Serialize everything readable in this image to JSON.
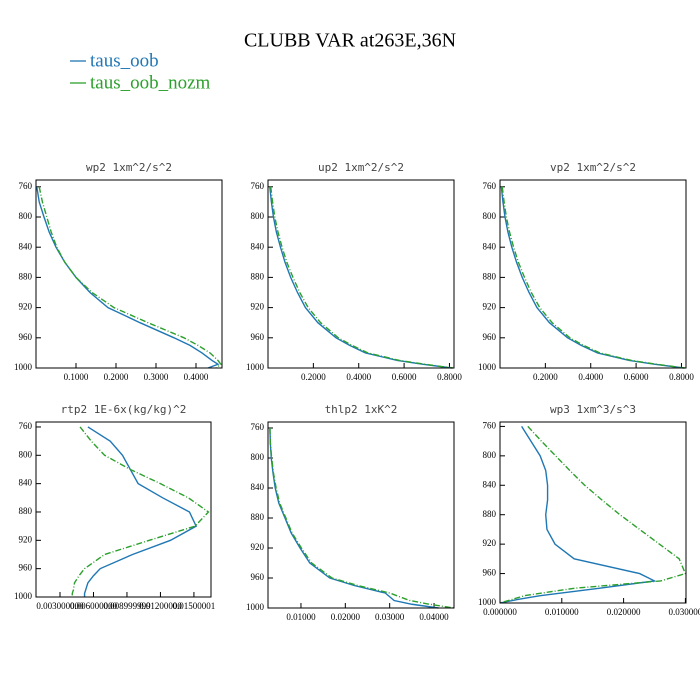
{
  "title": "CLUBB VAR at263E,36N",
  "chart_data": [
    {
      "type": "line",
      "title": "wp2  1xm^2/s^2",
      "y": [
        760,
        780,
        800,
        820,
        840,
        860,
        880,
        900,
        920,
        940,
        960,
        970,
        980,
        990,
        995,
        1000
      ],
      "series": [
        {
          "name": "taus_oob",
          "color": "#1f77b4",
          "values": [
            0.002,
            0.008,
            0.02,
            0.033,
            0.05,
            0.072,
            0.1,
            0.135,
            0.18,
            0.26,
            0.345,
            0.385,
            0.415,
            0.44,
            0.455,
            0.43
          ]
        },
        {
          "name": "taus_oob_nozm",
          "color": "#2ca02c",
          "values": [
            0.008,
            0.016,
            0.027,
            0.038,
            0.052,
            0.072,
            0.1,
            0.14,
            0.195,
            0.28,
            0.37,
            0.405,
            0.435,
            0.455,
            0.462,
            0.45
          ]
        }
      ],
      "xlim": [
        0,
        0.465
      ],
      "ylim": [
        1000,
        751
      ],
      "xticks": [
        {
          "value": 0.1,
          "label": "0.1000"
        },
        {
          "value": 0.2,
          "label": "0.2000"
        },
        {
          "value": 0.3,
          "label": "0.3000"
        },
        {
          "value": 0.4,
          "label": "0.4000"
        }
      ],
      "yticks": [
        760,
        800,
        840,
        880,
        920,
        960,
        1000
      ]
    },
    {
      "type": "line",
      "title": "up2  1xm^2/s^2",
      "y": [
        760,
        780,
        800,
        820,
        840,
        860,
        880,
        900,
        920,
        940,
        960,
        970,
        980,
        990,
        995,
        1000
      ],
      "series": [
        {
          "color": "#1f77b4",
          "values": [
            0.008,
            0.015,
            0.024,
            0.037,
            0.055,
            0.075,
            0.1,
            0.13,
            0.165,
            0.22,
            0.3,
            0.36,
            0.43,
            0.57,
            0.68,
            0.81
          ]
        },
        {
          "color": "#2ca02c",
          "values": [
            0.012,
            0.02,
            0.03,
            0.044,
            0.062,
            0.083,
            0.11,
            0.14,
            0.177,
            0.232,
            0.31,
            0.37,
            0.44,
            0.58,
            0.69,
            0.815
          ]
        }
      ],
      "xlim": [
        0,
        0.82
      ],
      "ylim": [
        1000,
        751
      ],
      "xticks": [
        {
          "value": 0.2,
          "label": "0.2000"
        },
        {
          "value": 0.4,
          "label": "0.4000"
        },
        {
          "value": 0.6,
          "label": "0.6000"
        },
        {
          "value": 0.8,
          "label": "0.8000"
        }
      ],
      "yticks": [
        760,
        800,
        840,
        880,
        920,
        960,
        1000
      ]
    },
    {
      "type": "line",
      "title": "vp2  1xm^2/s^2",
      "y": [
        760,
        780,
        800,
        820,
        840,
        860,
        880,
        900,
        920,
        940,
        960,
        970,
        980,
        990,
        995,
        1000
      ],
      "series": [
        {
          "color": "#1f77b4",
          "values": [
            0.006,
            0.013,
            0.022,
            0.035,
            0.052,
            0.073,
            0.098,
            0.128,
            0.163,
            0.218,
            0.298,
            0.358,
            0.43,
            0.57,
            0.68,
            0.81
          ]
        },
        {
          "color": "#2ca02c",
          "values": [
            0.01,
            0.018,
            0.028,
            0.042,
            0.06,
            0.081,
            0.108,
            0.138,
            0.175,
            0.23,
            0.308,
            0.368,
            0.44,
            0.58,
            0.69,
            0.815
          ]
        }
      ],
      "xlim": [
        0,
        0.82
      ],
      "ylim": [
        1000,
        751
      ],
      "xticks": [
        {
          "value": 0.2,
          "label": "0.2000"
        },
        {
          "value": 0.4,
          "label": "0.4000"
        },
        {
          "value": 0.6,
          "label": "0.6000"
        },
        {
          "value": 0.8,
          "label": "0.8000"
        }
      ],
      "yticks": [
        760,
        800,
        840,
        880,
        920,
        960,
        1000
      ]
    },
    {
      "type": "line",
      "title": "rtp2  1E-6x(kg/kg)^2",
      "y": [
        760,
        780,
        800,
        820,
        840,
        860,
        880,
        900,
        920,
        940,
        960,
        970,
        980,
        990,
        995,
        1000
      ],
      "series": [
        {
          "color": "#1f77b4",
          "values": [
            0.0055,
            0.0075,
            0.0086,
            0.0093,
            0.01,
            0.0122,
            0.0146,
            0.0152,
            0.0129,
            0.0095,
            0.0066,
            0.006,
            0.0055,
            0.0053,
            0.0052,
            0.0052
          ]
        },
        {
          "color": "#2ca02c",
          "values": [
            0.0048,
            0.0058,
            0.007,
            0.0093,
            0.012,
            0.0145,
            0.0163,
            0.0151,
            0.011,
            0.007,
            0.0052,
            0.0047,
            0.0043,
            0.0042,
            0.0041,
            0.0041
          ]
        }
      ],
      "xlim": [
        0.00085,
        0.01653
      ],
      "ylim": [
        1000,
        753
      ],
      "xticks": [
        {
          "value": 0.003,
          "label": "0.003000000"
        },
        {
          "value": 0.006,
          "label": "0.006000000"
        },
        {
          "value": 0.009,
          "label": "0.008999999"
        },
        {
          "value": 0.012,
          "label": "0.01200000"
        },
        {
          "value": 0.015,
          "label": "0.01500001"
        }
      ],
      "yticks": [
        760,
        800,
        840,
        880,
        920,
        960,
        1000
      ]
    },
    {
      "type": "line",
      "title": "thlp2  1xK^2",
      "y": [
        760,
        780,
        800,
        820,
        840,
        860,
        880,
        900,
        920,
        940,
        960,
        970,
        980,
        990,
        995,
        1000
      ],
      "series": [
        {
          "color": "#1f77b4",
          "values": [
            0.003,
            0.0031,
            0.0033,
            0.0037,
            0.0042,
            0.005,
            0.0064,
            0.0078,
            0.0098,
            0.012,
            0.0165,
            0.022,
            0.029,
            0.031,
            0.035,
            0.041
          ]
        },
        {
          "color": "#2ca02c",
          "values": [
            0.003,
            0.0031,
            0.0034,
            0.0038,
            0.0044,
            0.0052,
            0.0066,
            0.008,
            0.0101,
            0.0124,
            0.017,
            0.0228,
            0.03,
            0.0345,
            0.039,
            0.0444
          ]
        }
      ],
      "xlim": [
        0.00257,
        0.0445
      ],
      "ylim": [
        1000,
        752
      ],
      "xticks": [
        {
          "value": 0.01,
          "label": "0.01000"
        },
        {
          "value": 0.02,
          "label": "0.02000"
        },
        {
          "value": 0.03,
          "label": "0.03000"
        },
        {
          "value": 0.04,
          "label": "0.04000"
        }
      ],
      "yticks": [
        760,
        800,
        840,
        880,
        920,
        960,
        1000
      ]
    },
    {
      "type": "line",
      "title": "wp3  1xm^3/s^3",
      "y": [
        760,
        780,
        800,
        820,
        840,
        860,
        880,
        900,
        920,
        940,
        960,
        970,
        980,
        990,
        995,
        1000
      ],
      "series": [
        {
          "color": "#1f77b4",
          "values": [
            0.0035,
            0.005,
            0.0065,
            0.0074,
            0.0077,
            0.0077,
            0.0074,
            0.0076,
            0.0089,
            0.012,
            0.0226,
            0.025,
            0.016,
            0.0065,
            0.003,
            0
          ]
        },
        {
          "color": "#2ca02c",
          "values": [
            0.0045,
            0.0067,
            0.009,
            0.0113,
            0.0137,
            0.0165,
            0.0194,
            0.0226,
            0.0258,
            0.029,
            0.03,
            0.026,
            0.012,
            0.004,
            0.002,
            0
          ]
        }
      ],
      "xlim": [
        0,
        0.0301
      ],
      "ylim": [
        1000,
        754
      ],
      "xticks": [
        {
          "value": 0,
          "label": "0.000000"
        },
        {
          "value": 0.01,
          "label": "0.010000"
        },
        {
          "value": 0.02,
          "label": "0.020000"
        },
        {
          "value": 0.03,
          "label": "0.030000"
        }
      ],
      "yticks": [
        760,
        800,
        840,
        880,
        920,
        960,
        1000
      ]
    }
  ]
}
